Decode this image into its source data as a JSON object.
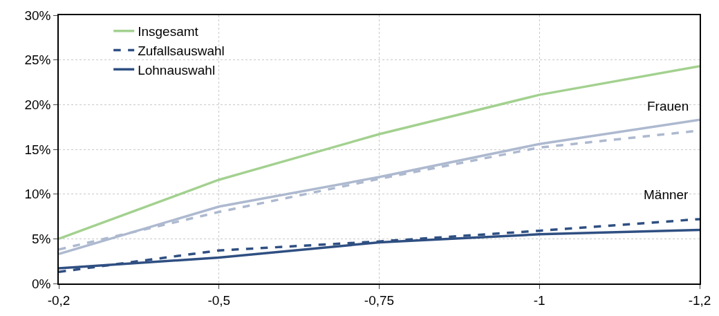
{
  "chart_data": {
    "type": "line",
    "categories": [
      "-0,2",
      "-0,5",
      "-0,75",
      "-1",
      "-1,2"
    ],
    "series": [
      {
        "name": "Insgesamt",
        "color": "#a3d18f",
        "values": [
          5.0,
          11.6,
          16.7,
          21.1,
          24.3
        ],
        "line_style": "solid"
      },
      {
        "color": "#adb9cf",
        "values": [
          3.3,
          8.6,
          11.9,
          15.6,
          18.3
        ],
        "line_style": "solid"
      },
      {
        "color": "#adb9cf",
        "values": [
          3.8,
          8.0,
          11.7,
          15.2,
          17.1
        ],
        "line_style": "dashed"
      },
      {
        "name": "Zufallsauswahl",
        "color": "#2f4f82",
        "values": [
          1.3,
          3.7,
          4.7,
          5.9,
          7.2
        ],
        "line_style": "dashed"
      },
      {
        "name": "Lohnauswahl",
        "color": "#2f4f82",
        "values": [
          1.7,
          2.9,
          4.6,
          5.5,
          6.0
        ],
        "line_style": "solid"
      }
    ],
    "ylim": [
      0,
      30
    ],
    "yticks": [
      {
        "value": 0,
        "label": "0%"
      },
      {
        "value": 5,
        "label": "5%"
      },
      {
        "value": 10,
        "label": "10%"
      },
      {
        "value": 15,
        "label": "15%"
      },
      {
        "value": 20,
        "label": "20%"
      },
      {
        "value": 25,
        "label": "25%"
      },
      {
        "value": 30,
        "label": "30%"
      }
    ],
    "annotations": [
      "Frauen",
      "Männer"
    ],
    "grid": true,
    "legend": "top left",
    "marker": "none"
  }
}
